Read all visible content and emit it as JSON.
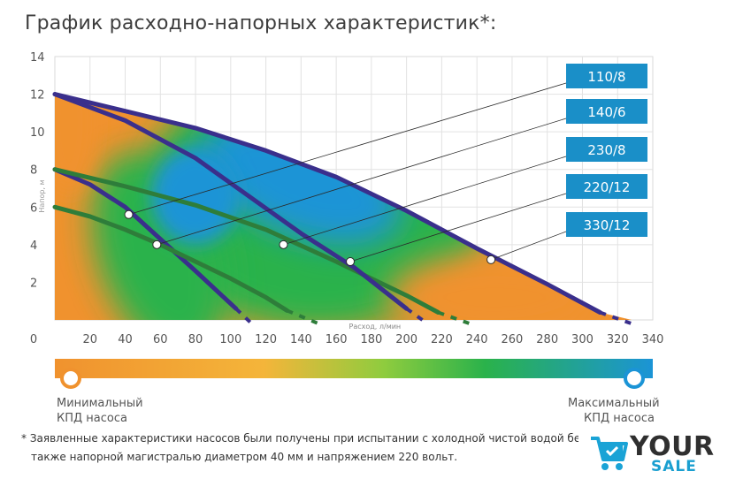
{
  "title": "График расходно-напорных характеристик*:",
  "chart_data": {
    "type": "line",
    "xlabel": "Расход, л/мин",
    "ylabel": "Напор, м",
    "xlim": [
      0,
      340
    ],
    "ylim": [
      0,
      14
    ],
    "x_ticks": [
      0,
      20,
      40,
      60,
      80,
      100,
      120,
      140,
      160,
      180,
      200,
      220,
      240,
      260,
      280,
      300,
      320,
      340
    ],
    "y_ticks": [
      2,
      4,
      6,
      8,
      10,
      12,
      14
    ],
    "grid": true,
    "series": [
      {
        "name": "110/8",
        "color": "#3a2f8c",
        "points": [
          [
            0,
            8.0
          ],
          [
            20,
            7.2
          ],
          [
            40,
            6.0
          ],
          [
            60,
            4.3
          ],
          [
            80,
            2.6
          ],
          [
            103,
            0.6
          ]
        ],
        "dash_to": [
          [
            103,
            0.6
          ],
          [
            112,
            -0.2
          ]
        ],
        "marker": [
          42,
          5.6
        ]
      },
      {
        "name": "140/6",
        "color": "#2e7d3a",
        "points": [
          [
            0,
            6.0
          ],
          [
            20,
            5.5
          ],
          [
            40,
            4.8
          ],
          [
            60,
            4.0
          ],
          [
            80,
            3.1
          ],
          [
            100,
            2.2
          ],
          [
            120,
            1.2
          ],
          [
            132,
            0.5
          ]
        ],
        "dash_to": [
          [
            132,
            0.5
          ],
          [
            150,
            -0.2
          ]
        ],
        "marker": [
          58,
          4.0
        ]
      },
      {
        "name": "230/8",
        "color": "#2e7d3a",
        "points": [
          [
            0,
            8.0
          ],
          [
            40,
            7.1
          ],
          [
            80,
            6.1
          ],
          [
            120,
            4.8
          ],
          [
            160,
            3.1
          ],
          [
            200,
            1.3
          ],
          [
            218,
            0.4
          ]
        ],
        "dash_to": [
          [
            218,
            0.4
          ],
          [
            236,
            -0.2
          ]
        ],
        "marker": [
          130,
          4.0
        ]
      },
      {
        "name": "220/12",
        "color": "#3a2f8c",
        "points": [
          [
            0,
            12.0
          ],
          [
            40,
            10.6
          ],
          [
            80,
            8.6
          ],
          [
            110,
            6.6
          ],
          [
            140,
            4.6
          ],
          [
            170,
            2.8
          ],
          [
            200,
            0.6
          ]
        ],
        "dash_to": [
          [
            200,
            0.6
          ],
          [
            212,
            -0.2
          ]
        ],
        "marker": [
          168,
          3.1
        ]
      },
      {
        "name": "330/12",
        "color": "#3a2f8c",
        "points": [
          [
            0,
            12.0
          ],
          [
            40,
            11.1
          ],
          [
            80,
            10.2
          ],
          [
            120,
            9.0
          ],
          [
            160,
            7.6
          ],
          [
            200,
            5.8
          ],
          [
            240,
            3.8
          ],
          [
            280,
            1.9
          ],
          [
            310,
            0.4
          ]
        ],
        "dash_to": [
          [
            310,
            0.4
          ],
          [
            328,
            -0.2
          ]
        ],
        "marker": [
          248,
          3.2
        ]
      }
    ],
    "legend_order": [
      "110/8",
      "140/6",
      "230/8",
      "220/12",
      "330/12"
    ],
    "legend_placement": "right",
    "efficiency_scale": {
      "min_label": "Минимальный КПД насоса",
      "max_label": "Максимальный КПД насоса",
      "min_color": "#f0922e",
      "max_color": "#1b94d6"
    }
  },
  "footnote": {
    "line1": "* Заявленные характеристики насосов были получены при испытании с холодной чистой водой без газов",
    "line2": "также напорной магистралью диаметром 40 мм и напряжением 220 вольт."
  },
  "logo": {
    "text1": "YOUR",
    "text2": "SALE",
    "icon": "cart-icon"
  },
  "colors": {
    "orange": "#f0922e",
    "green": "#2ab24b",
    "blue": "#1b94d6",
    "legend_box": "#1a8fc8",
    "navy_curve": "#3a2f8c",
    "green_curve": "#2e7d3a"
  }
}
